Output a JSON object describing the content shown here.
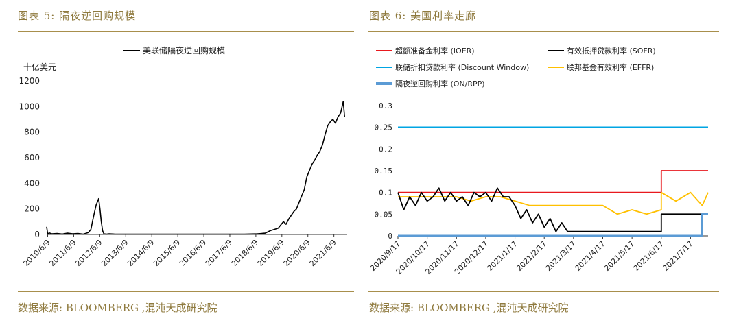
{
  "left_panel": {
    "title": "图表 5: 隔夜逆回购规模",
    "source": "数据来源: BLOOMBERG ,混沌天成研究院"
  },
  "right_panel": {
    "title": "图表 6: 美国利率走廊",
    "source": "数据来源: BLOOMBERG ,混沌天成研究院"
  },
  "chart_data": [
    {
      "type": "line",
      "title": "",
      "unit_label": "十亿美元",
      "xlabel": "",
      "ylabel": "十亿美元",
      "ylim": [
        0,
        1200
      ],
      "yticks": [
        0,
        200,
        400,
        600,
        800,
        1000,
        1200
      ],
      "xtick_labels": [
        "2010/6/9",
        "2011/6/9",
        "2012/6/9",
        "2013/6/9",
        "2014/6/9",
        "2015/6/9",
        "2016/6/9",
        "2017/6/9",
        "2018/6/9",
        "2019/6/9",
        "2020/6/9",
        "2021/6/9"
      ],
      "legend_position": "top",
      "grid": false,
      "series": [
        {
          "name": "美联储隔夜逆回购规模",
          "color": "#000000",
          "x": [
            2010.4,
            2010.44,
            2010.5,
            2010.6,
            2010.8,
            2011.0,
            2011.2,
            2011.4,
            2011.6,
            2011.8,
            2012.0,
            2012.1,
            2012.2,
            2012.3,
            2012.4,
            2012.45,
            2012.5,
            2012.55,
            2012.6,
            2012.7,
            2012.8,
            2013.0,
            2013.5,
            2014.0,
            2014.5,
            2015.0,
            2015.5,
            2016.0,
            2016.5,
            2017.0,
            2017.5,
            2018.0,
            2018.5,
            2018.8,
            2019.0,
            2019.3,
            2019.5,
            2019.6,
            2019.7,
            2019.8,
            2019.9,
            2020.0,
            2020.1,
            2020.2,
            2020.3,
            2020.4,
            2020.5,
            2020.6,
            2020.7,
            2020.8,
            2020.9,
            2021.0,
            2021.1,
            2021.2,
            2021.3,
            2021.4,
            2021.5,
            2021.6,
            2021.7,
            2021.8,
            2021.85
          ],
          "values": [
            60,
            5,
            12,
            5,
            8,
            3,
            10,
            5,
            8,
            2,
            15,
            40,
            140,
            230,
            280,
            200,
            100,
            30,
            5,
            2,
            5,
            3,
            2,
            2,
            2,
            2,
            2,
            2,
            2,
            2,
            2,
            2,
            5,
            10,
            30,
            50,
            100,
            80,
            120,
            150,
            180,
            200,
            250,
            300,
            350,
            450,
            500,
            550,
            580,
            620,
            650,
            700,
            780,
            850,
            880,
            900,
            870,
            920,
            950,
            1040,
            920
          ]
        }
      ]
    },
    {
      "type": "line",
      "title": "",
      "xlabel": "",
      "ylabel": "",
      "ylim": [
        0,
        0.3
      ],
      "yticks": [
        "0",
        "0.05",
        "0.1",
        "0.15",
        "0.2",
        "0.25",
        "0.3"
      ],
      "xtick_labels": [
        "2020/9/17",
        "2020/10/17",
        "2020/11/17",
        "2020/12/17",
        "2021/1/17",
        "2021/2/17",
        "2021/3/17",
        "2021/4/17",
        "2021/5/17",
        "2021/6/17",
        "2021/7/17"
      ],
      "legend_position": "top",
      "grid": false,
      "series": [
        {
          "name": "超额准备金利率 (IOER)",
          "color": "#e8191e",
          "x": [
            0,
            9.0,
            9.0,
            10.6
          ],
          "values": [
            0.1,
            0.1,
            0.15,
            0.15
          ]
        },
        {
          "name": "有效抵押贷款利率 (SOFR)",
          "color": "#000000",
          "x": [
            0,
            0.2,
            0.4,
            0.6,
            0.8,
            1.0,
            1.2,
            1.4,
            1.6,
            1.8,
            2.0,
            2.2,
            2.4,
            2.6,
            2.8,
            3.0,
            3.2,
            3.4,
            3.6,
            3.8,
            4.0,
            4.2,
            4.4,
            4.6,
            4.8,
            5.0,
            5.2,
            5.4,
            5.6,
            5.8,
            6.0,
            7.0,
            8.0,
            9.0,
            9.0,
            10.6
          ],
          "values": [
            0.1,
            0.06,
            0.09,
            0.07,
            0.1,
            0.08,
            0.09,
            0.11,
            0.08,
            0.1,
            0.08,
            0.09,
            0.07,
            0.1,
            0.09,
            0.1,
            0.08,
            0.11,
            0.09,
            0.09,
            0.07,
            0.04,
            0.06,
            0.03,
            0.05,
            0.02,
            0.04,
            0.01,
            0.03,
            0.01,
            0.01,
            0.01,
            0.01,
            0.01,
            0.05,
            0.05
          ]
        },
        {
          "name": "联储折扣贷款利率 (Discount Window)",
          "color": "#00a5e3",
          "x": [
            0,
            10.6
          ],
          "values": [
            0.25,
            0.25
          ]
        },
        {
          "name": "联邦基金有效利率 (EFFR)",
          "color": "#ffc000",
          "x": [
            0,
            2.0,
            2.5,
            3.0,
            3.5,
            4.0,
            4.5,
            5.0,
            6.0,
            7.0,
            7.5,
            8.0,
            8.5,
            9.0,
            9.0,
            9.5,
            10.0,
            10.4,
            10.6
          ],
          "values": [
            0.09,
            0.09,
            0.08,
            0.09,
            0.09,
            0.08,
            0.07,
            0.07,
            0.07,
            0.07,
            0.05,
            0.06,
            0.05,
            0.06,
            0.1,
            0.08,
            0.1,
            0.07,
            0.1
          ]
        },
        {
          "name": "隔夜逆回购利率 (ON/RPP)",
          "color": "#5b9bd5",
          "x": [
            0,
            10.4,
            10.4,
            10.6
          ],
          "values": [
            0.0,
            0.0,
            0.05,
            0.05
          ]
        }
      ]
    }
  ]
}
